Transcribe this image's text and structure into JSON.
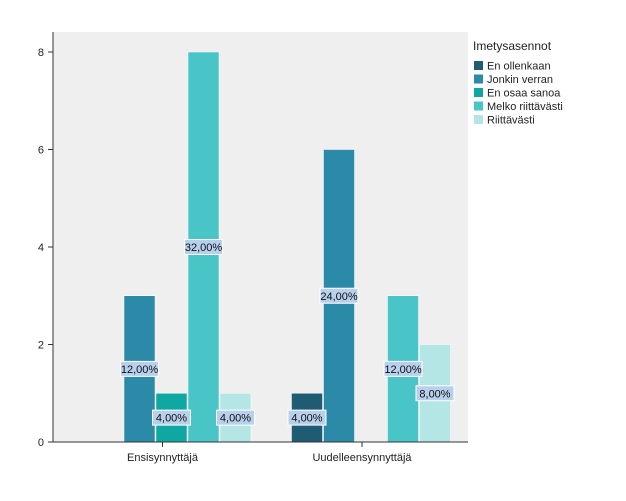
{
  "chart_data": {
    "type": "bar",
    "categories": [
      "Ensisynnyttäjä",
      "Uudelleensynnyttäjä"
    ],
    "series": [
      {
        "name": "En ollenkaan",
        "color": "#1f5b73",
        "values": [
          0,
          1
        ],
        "labels": [
          "",
          "4,00%"
        ]
      },
      {
        "name": "Jonkin verran",
        "color": "#2a8aa8",
        "values": [
          3,
          6
        ],
        "labels": [
          "12,00%",
          "24,00%"
        ]
      },
      {
        "name": "En osaa sanoa",
        "color": "#0ea7a2",
        "values": [
          1,
          0
        ],
        "labels": [
          "4,00%",
          ""
        ]
      },
      {
        "name": "Melko riittävästi",
        "color": "#49c5c7",
        "values": [
          8,
          3
        ],
        "labels": [
          "32,00%",
          "12,00%"
        ]
      },
      {
        "name": "Riittävästi",
        "color": "#b4e6e6",
        "values": [
          1,
          2
        ],
        "labels": [
          "4,00%",
          "8,00%"
        ]
      }
    ],
    "legend_title": "Imetysasennot",
    "legend_position": "top-right",
    "ylim": [
      0,
      8
    ],
    "yticks": [
      0,
      2,
      4,
      6,
      8
    ],
    "grid": false,
    "plot_background": "#efefef",
    "label_background": "#b8d0ec"
  }
}
